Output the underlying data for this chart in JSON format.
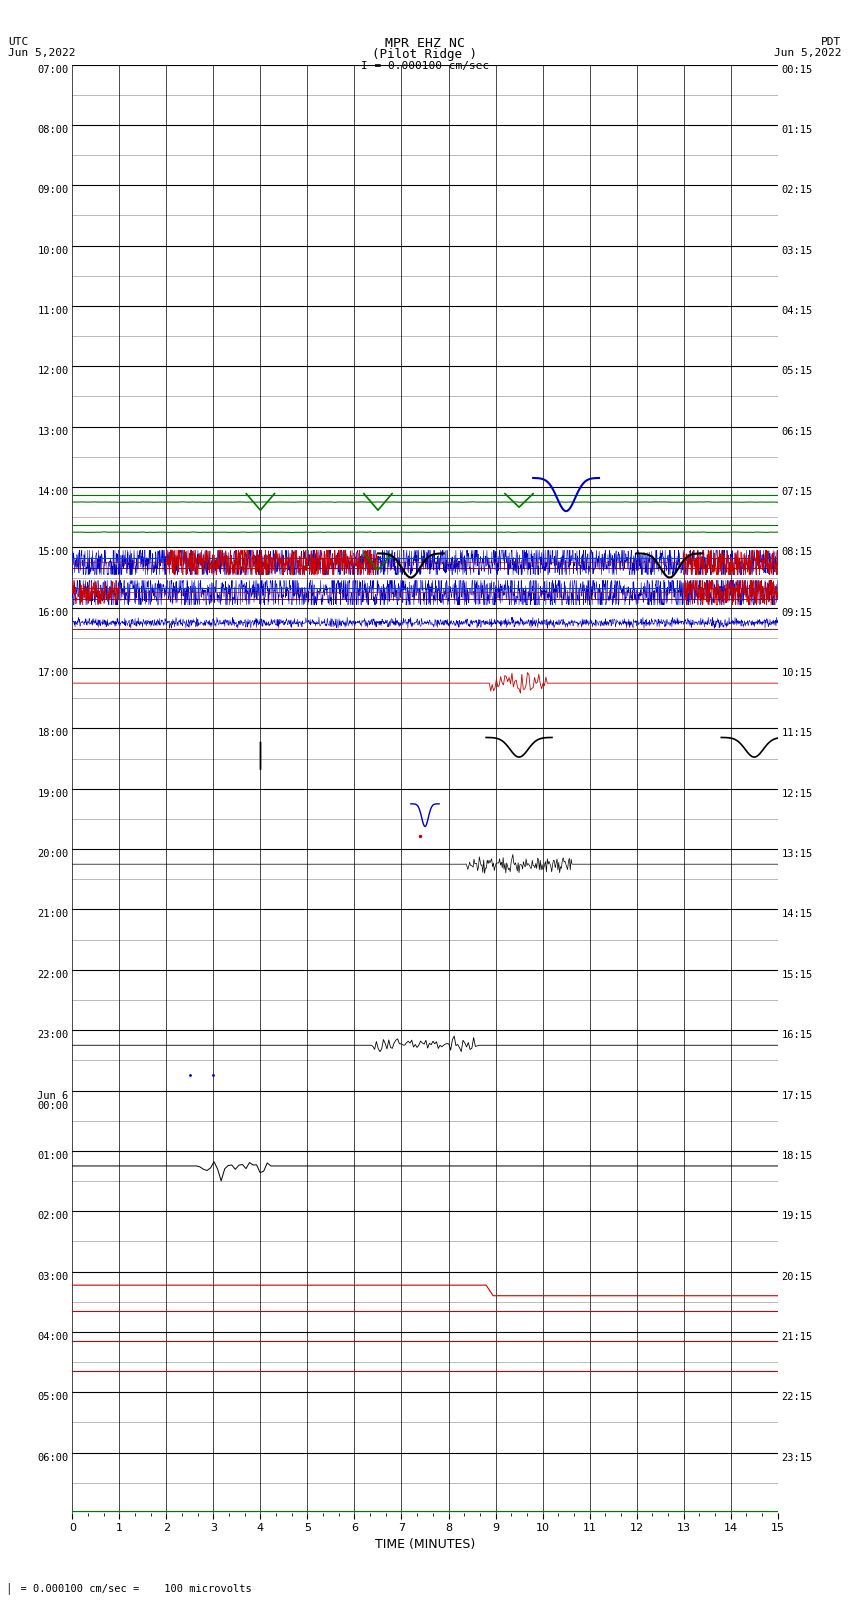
{
  "title_line1": "MPR EHZ NC",
  "title_line2": "(Pilot Ridge )",
  "title_line3": "I = 0.000100 cm/sec",
  "left_header_line1": "UTC",
  "left_header_line2": "Jun 5,2022",
  "right_header_line1": "PDT",
  "right_header_line2": "Jun 5,2022",
  "xlabel": "TIME (MINUTES)",
  "footer": "= 0.000100 cm/sec =    100 microvolts",
  "background_color": "#ffffff",
  "grid_major_color": "#000000",
  "grid_minor_color": "#888888",
  "num_rows": 48,
  "rows": [
    {
      "label_left": "07:00",
      "label_right": "00:15",
      "major": true
    },
    {
      "label_left": "",
      "label_right": "",
      "major": false
    },
    {
      "label_left": "08:00",
      "label_right": "01:15",
      "major": true
    },
    {
      "label_left": "",
      "label_right": "",
      "major": false
    },
    {
      "label_left": "09:00",
      "label_right": "02:15",
      "major": true
    },
    {
      "label_left": "",
      "label_right": "",
      "major": false
    },
    {
      "label_left": "10:00",
      "label_right": "03:15",
      "major": true
    },
    {
      "label_left": "",
      "label_right": "",
      "major": false
    },
    {
      "label_left": "11:00",
      "label_right": "04:15",
      "major": true
    },
    {
      "label_left": "",
      "label_right": "",
      "major": false
    },
    {
      "label_left": "12:00",
      "label_right": "05:15",
      "major": true
    },
    {
      "label_left": "",
      "label_right": "",
      "major": false
    },
    {
      "label_left": "13:00",
      "label_right": "06:15",
      "major": true
    },
    {
      "label_left": "",
      "label_right": "",
      "major": false
    },
    {
      "label_left": "14:00",
      "label_right": "07:15",
      "major": true
    },
    {
      "label_left": "",
      "label_right": "",
      "major": false
    },
    {
      "label_left": "15:00",
      "label_right": "08:15",
      "major": true
    },
    {
      "label_left": "",
      "label_right": "",
      "major": false
    },
    {
      "label_left": "16:00",
      "label_right": "09:15",
      "major": true
    },
    {
      "label_left": "",
      "label_right": "",
      "major": false
    },
    {
      "label_left": "17:00",
      "label_right": "10:15",
      "major": true
    },
    {
      "label_left": "",
      "label_right": "",
      "major": false
    },
    {
      "label_left": "18:00",
      "label_right": "11:15",
      "major": true
    },
    {
      "label_left": "",
      "label_right": "",
      "major": false
    },
    {
      "label_left": "19:00",
      "label_right": "12:15",
      "major": true
    },
    {
      "label_left": "",
      "label_right": "",
      "major": false
    },
    {
      "label_left": "20:00",
      "label_right": "13:15",
      "major": true
    },
    {
      "label_left": "",
      "label_right": "",
      "major": false
    },
    {
      "label_left": "21:00",
      "label_right": "14:15",
      "major": true
    },
    {
      "label_left": "",
      "label_right": "",
      "major": false
    },
    {
      "label_left": "22:00",
      "label_right": "15:15",
      "major": true
    },
    {
      "label_left": "",
      "label_right": "",
      "major": false
    },
    {
      "label_left": "23:00",
      "label_right": "16:15",
      "major": true
    },
    {
      "label_left": "",
      "label_right": "",
      "major": false
    },
    {
      "label_left": "Jun 6",
      "label_right": "17:15",
      "major": true,
      "extra_label": "00:00"
    },
    {
      "label_left": "",
      "label_right": "",
      "major": false
    },
    {
      "label_left": "01:00",
      "label_right": "18:15",
      "major": true
    },
    {
      "label_left": "",
      "label_right": "",
      "major": false
    },
    {
      "label_left": "02:00",
      "label_right": "19:15",
      "major": true
    },
    {
      "label_left": "",
      "label_right": "",
      "major": false
    },
    {
      "label_left": "03:00",
      "label_right": "20:15",
      "major": true
    },
    {
      "label_left": "",
      "label_right": "",
      "major": false
    },
    {
      "label_left": "04:00",
      "label_right": "21:15",
      "major": true
    },
    {
      "label_left": "",
      "label_right": "",
      "major": false
    },
    {
      "label_left": "05:00",
      "label_right": "22:15",
      "major": true
    },
    {
      "label_left": "",
      "label_right": "",
      "major": false
    },
    {
      "label_left": "06:00",
      "label_right": "23:15",
      "major": true
    },
    {
      "label_left": "",
      "label_right": "",
      "major": false
    }
  ]
}
